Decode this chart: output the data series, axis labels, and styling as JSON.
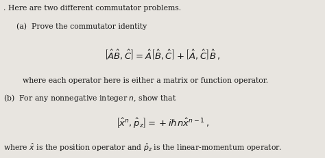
{
  "bg_color": "#e8e5e0",
  "text_color": "#1a1a1a",
  "title_line": ". Here are two different commutator problems.",
  "part_a_label": "(a)  Prove the commutator identity",
  "equation_a": "$\\left[\\hat{A}\\hat{B},\\hat{C}\\right] = \\hat{A}\\left[\\hat{B},\\hat{C}\\right] + \\left[\\hat{A},\\hat{C}\\right]\\hat{B}\\,,$",
  "where_a": "where each operator here is either a matrix or function operator.",
  "part_b_label": "(b)  For any nonnegative integer $n$, show that",
  "equation_b": "$\\left[\\hat{x}^{n},\\hat{p}_z\\right] = +i\\hbar n\\hat{x}^{n-1}\\,,$",
  "where_b": "where $\\hat{x}$ is the position operator and $\\hat{p}_z$ is the linear-momentum operator.",
  "fig_width": 4.74,
  "fig_height": 2.32,
  "dpi": 100
}
